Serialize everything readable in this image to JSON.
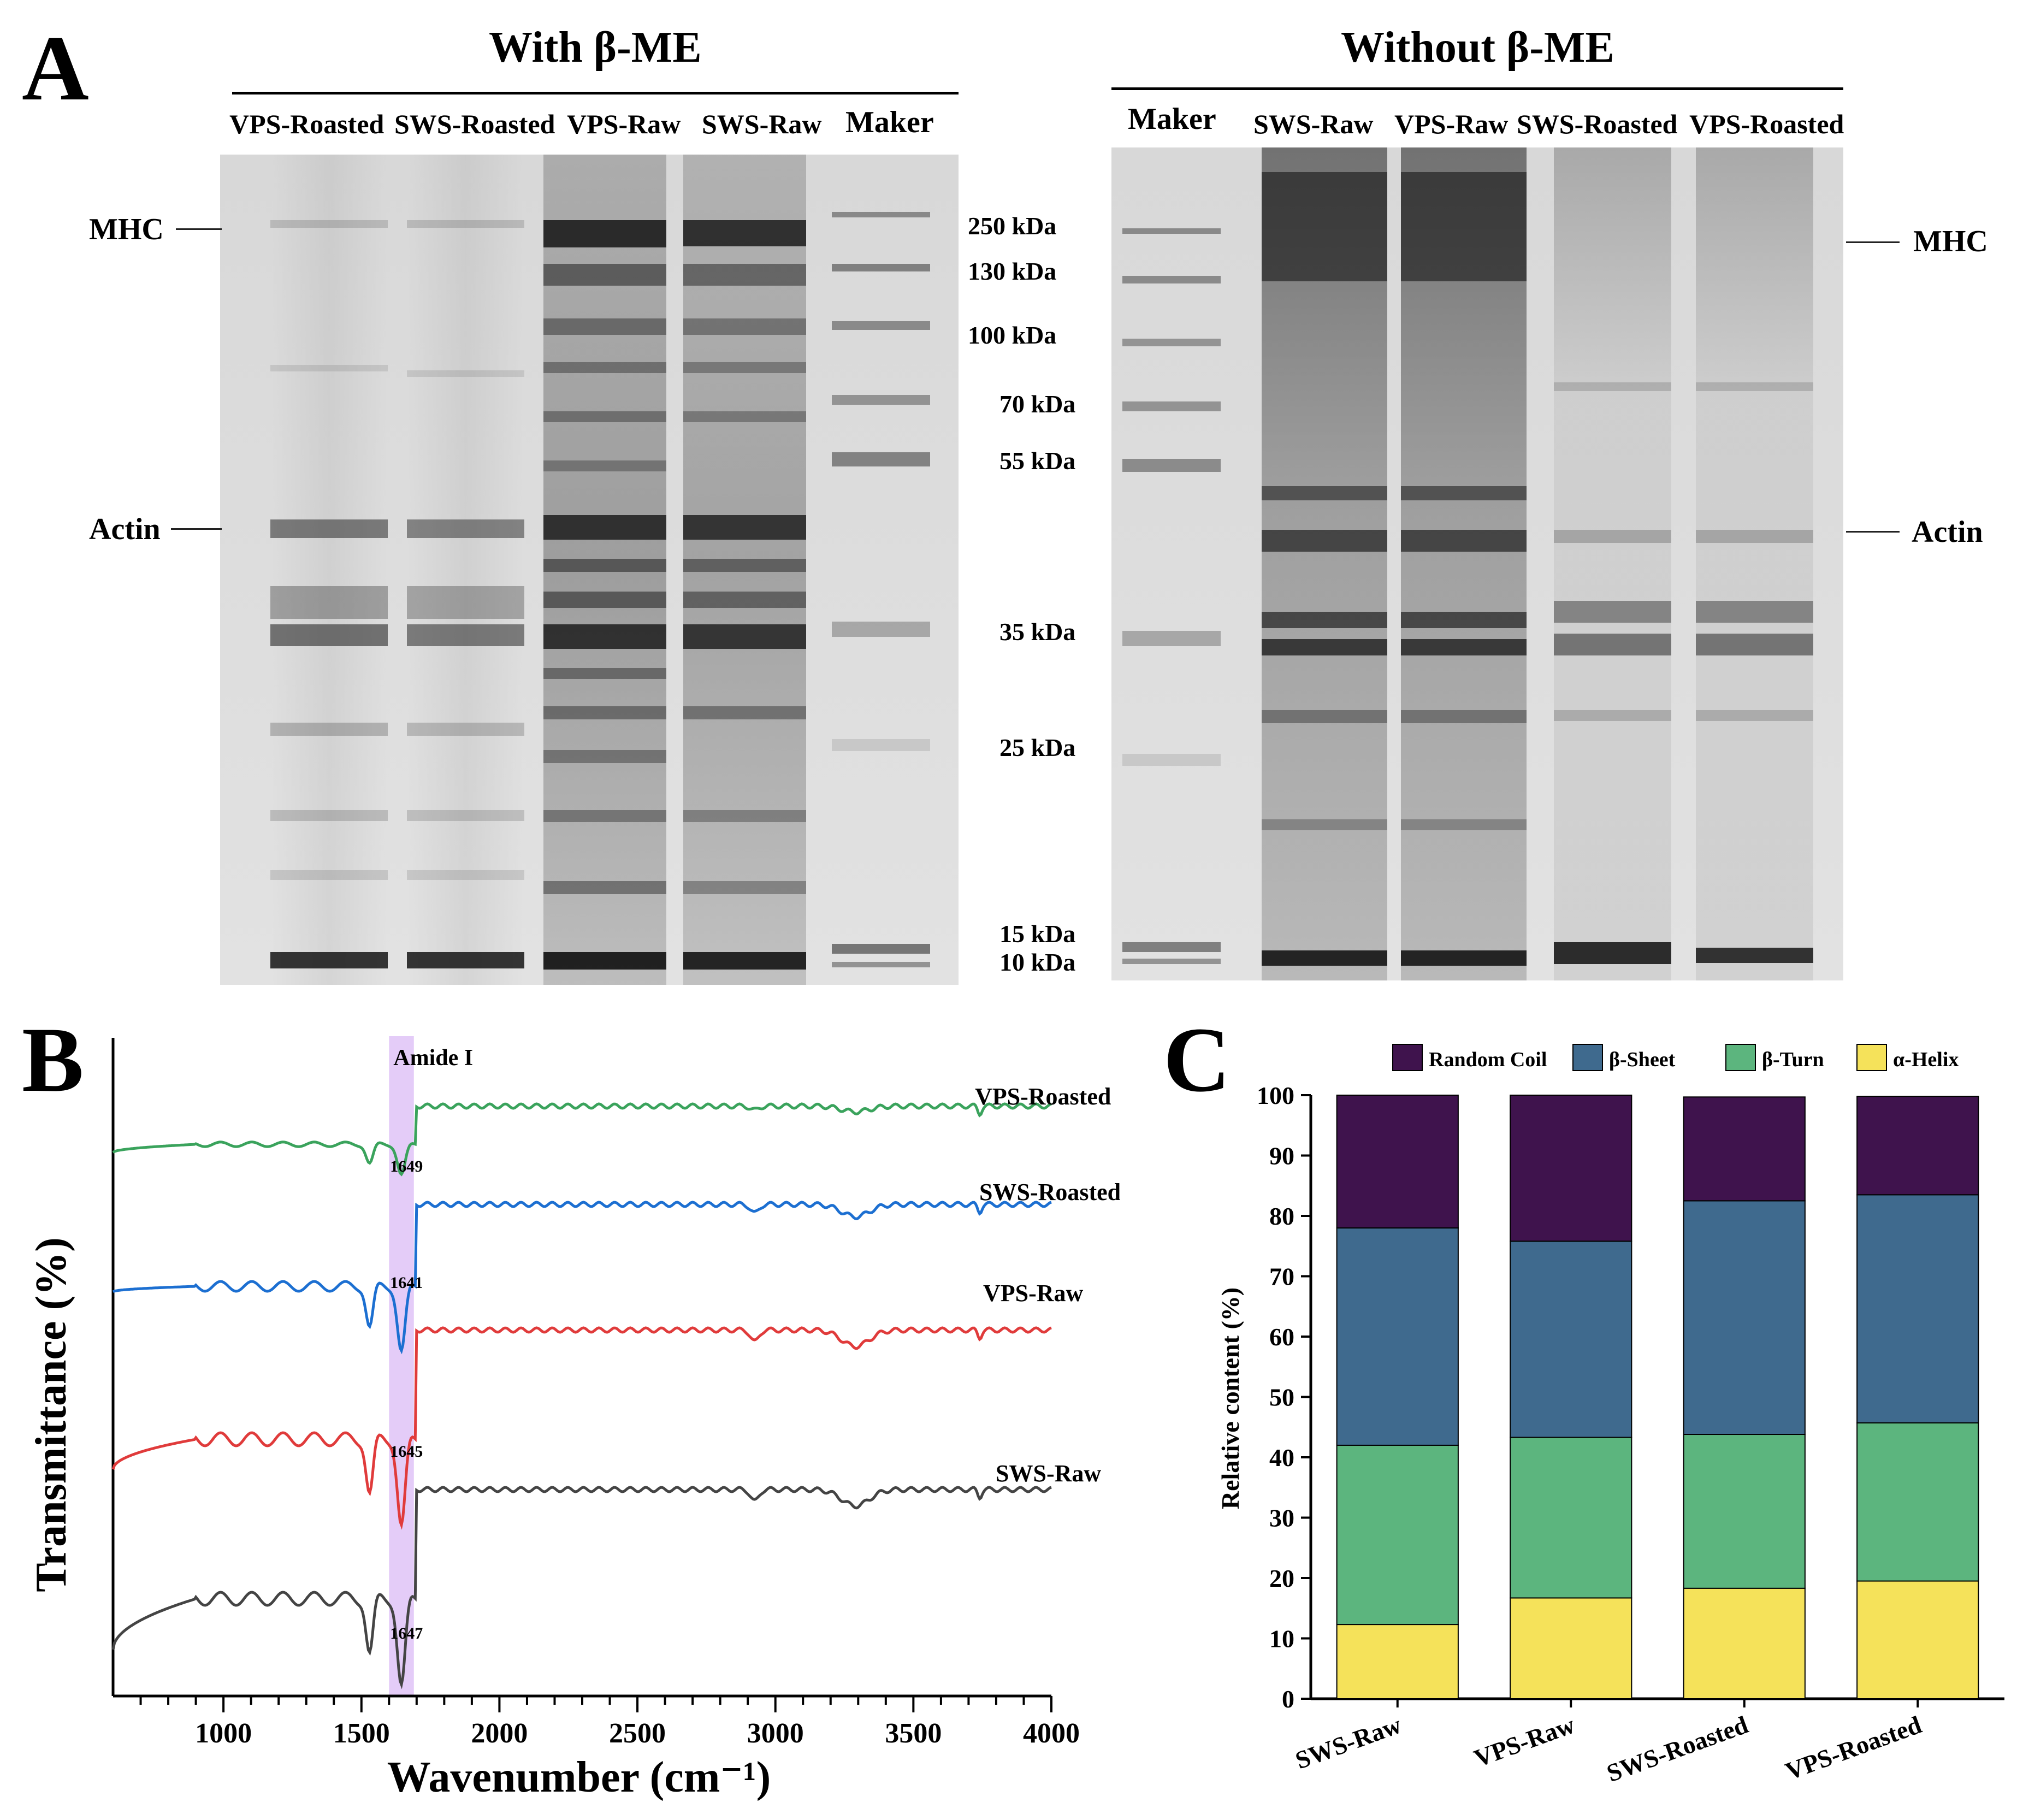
{
  "panel_a": {
    "letter": "A",
    "with_me": {
      "title": "With β-ME",
      "lanes": [
        "VPS-Roasted",
        "SWS-Roasted",
        "VPS-Raw",
        "SWS-Raw",
        "Maker"
      ],
      "left_markers": [
        "MHC",
        "Actin"
      ]
    },
    "without_me": {
      "title": "Without β-ME",
      "lanes": [
        "Maker",
        "SWS-Raw",
        "VPS-Raw",
        "SWS-Roasted",
        "VPS-Roasted"
      ],
      "right_markers": [
        "MHC",
        "Actin"
      ]
    },
    "ladder": [
      "250 kDa",
      "130 kDa",
      "100 kDa",
      "70 kDa",
      "55 kDa",
      "35 kDa",
      "25 kDa",
      "15 kDa",
      "10 kDa"
    ],
    "colors": {
      "gel_bg": "#dcdcdc",
      "band": "#303030"
    }
  },
  "panel_b": {
    "letter": "B",
    "chart_data": {
      "type": "line",
      "title": "",
      "xlabel": "Wavenumber (cm⁻¹)",
      "ylabel": "Transmittance (%)",
      "xlim": [
        600,
        4000
      ],
      "xticks": [
        1000,
        1500,
        2000,
        2500,
        3000,
        3500,
        4000
      ],
      "shaded_region": {
        "label": "Amide I",
        "x": [
          1600,
          1690
        ],
        "color": "#e4ccf8"
      },
      "series": [
        {
          "name": "VPS-Roasted",
          "color": "#3aa35c",
          "peak": "1649"
        },
        {
          "name": "SWS-Roasted",
          "color": "#1c6fd1",
          "peak": "1641"
        },
        {
          "name": "VPS-Raw",
          "color": "#e03b3b",
          "peak": "1645"
        },
        {
          "name": "SWS-Raw",
          "color": "#444444",
          "peak": "1647"
        }
      ]
    }
  },
  "panel_c": {
    "letter": "C",
    "chart_data": {
      "type": "bar",
      "stacked": true,
      "ylabel": "Relative content (%)",
      "ylim": [
        0,
        100
      ],
      "yticks": [
        0,
        10,
        20,
        30,
        40,
        50,
        60,
        70,
        80,
        90,
        100
      ],
      "categories": [
        "SWS-Raw",
        "VPS-Raw",
        "SWS-Roasted",
        "VPS-Roasted"
      ],
      "series": [
        {
          "name": "α-Helix",
          "color": "#f5e25a",
          "values": [
            12.3,
            16.7,
            18.3,
            19.5
          ]
        },
        {
          "name": "β-Turn",
          "color": "#5cb57e",
          "values": [
            29.7,
            26.6,
            25.5,
            26.2
          ]
        },
        {
          "name": "β-Sheet",
          "color": "#3f6a8e",
          "values": [
            36.0,
            32.5,
            38.7,
            37.8
          ]
        },
        {
          "name": "Random Coil",
          "color": "#3f134d",
          "values": [
            22.0,
            24.2,
            17.2,
            16.3
          ]
        }
      ],
      "legend_order": [
        "Random Coil",
        "β-Sheet",
        "β-Turn",
        "α-Helix"
      ],
      "legend_position": "top"
    }
  }
}
